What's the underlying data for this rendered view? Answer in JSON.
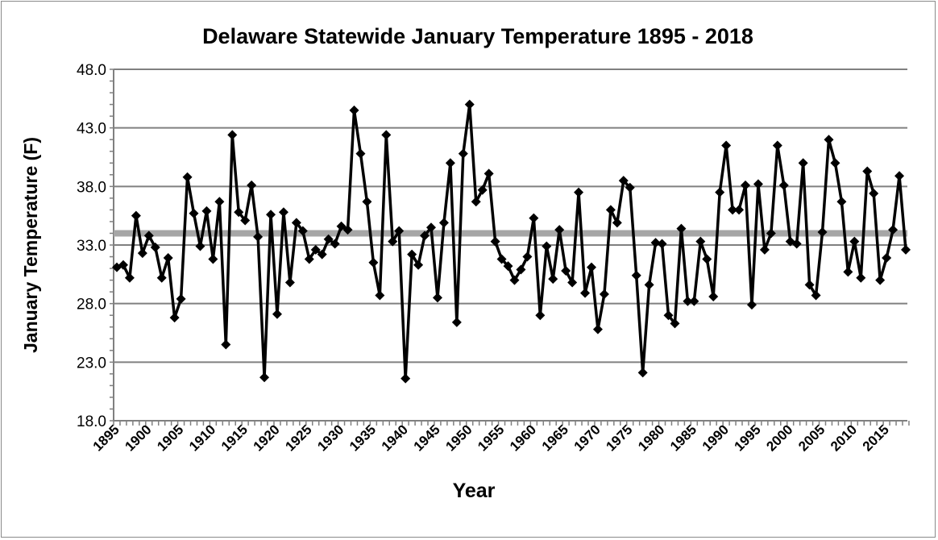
{
  "chart_data": {
    "type": "line",
    "title": "Delaware Statewide January Temperature 1895 - 2018",
    "xlabel": "Year",
    "ylabel": "January Temperature (F)",
    "ylim": [
      18,
      48
    ],
    "yticks": [
      "18.0",
      "23.0",
      "28.0",
      "33.0",
      "38.0",
      "43.0",
      "48.0"
    ],
    "xticks": [
      "1895",
      "1900",
      "1905",
      "1910",
      "1915",
      "1920",
      "1925",
      "1930",
      "1935",
      "1940",
      "1945",
      "1950",
      "1955",
      "1960",
      "1965",
      "1970",
      "1975",
      "1980",
      "1985",
      "1990",
      "1995",
      "2000",
      "2005",
      "2010",
      "2015"
    ],
    "grid": "horizontal",
    "x_start": 1895,
    "x_end": 2018,
    "series": [
      {
        "name": "January Temperature",
        "color": "#000000",
        "marker": "diamond",
        "values": [
          31.1,
          31.3,
          30.2,
          35.5,
          32.3,
          33.8,
          32.8,
          30.2,
          31.9,
          26.8,
          28.4,
          38.8,
          35.7,
          32.9,
          35.9,
          31.8,
          36.7,
          24.5,
          42.4,
          35.8,
          35.1,
          38.1,
          33.7,
          21.7,
          35.6,
          27.1,
          35.8,
          29.8,
          34.9,
          34.2,
          31.8,
          32.6,
          32.2,
          33.5,
          33.1,
          34.6,
          34.3,
          44.5,
          40.8,
          36.7,
          31.5,
          28.7,
          42.4,
          33.3,
          34.2,
          21.6,
          32.2,
          31.3,
          33.8,
          34.5,
          28.5,
          34.9,
          40.0,
          26.4,
          40.8,
          45.0,
          36.7,
          37.7,
          39.1,
          33.3,
          31.8,
          31.2,
          30.0,
          30.9,
          32.0,
          35.3,
          27.0,
          32.9,
          30.1,
          34.3,
          30.8,
          29.8,
          37.5,
          28.9,
          31.1,
          25.8,
          28.8,
          36.0,
          34.9,
          38.5,
          37.9,
          30.4,
          22.1,
          29.6,
          33.2,
          33.1,
          27.0,
          26.3,
          34.4,
          28.2,
          28.2,
          33.3,
          31.8,
          28.6,
          37.5,
          41.5,
          36.0,
          36.0,
          38.1,
          27.9,
          38.2,
          32.6,
          34.0,
          41.5,
          38.1,
          33.3,
          33.1,
          40.0,
          29.6,
          28.7,
          34.1,
          42.0,
          40.0,
          36.7,
          30.7,
          33.3,
          30.2,
          39.3,
          37.4,
          30.0,
          31.9,
          34.3,
          38.9,
          32.6
        ]
      }
    ],
    "mean_line": {
      "value": 34.0,
      "color": "#a6a6a6"
    }
  }
}
